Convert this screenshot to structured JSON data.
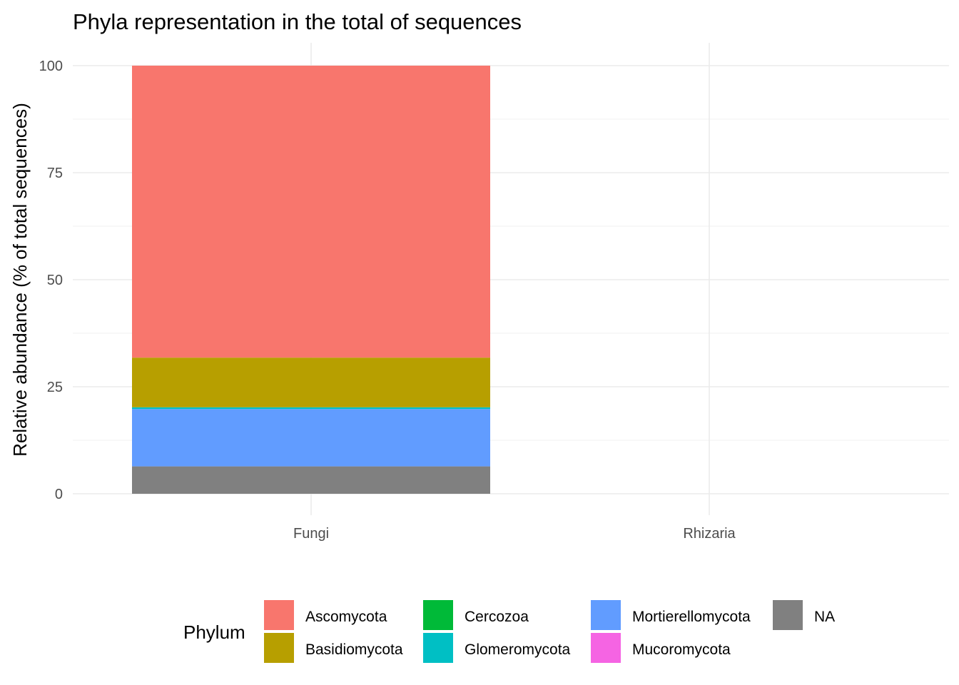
{
  "chart_data": {
    "type": "bar",
    "stacked": true,
    "title": "Phyla representation in the total of sequences",
    "xlabel": "",
    "ylabel": "Relative abundance (% of total sequences)",
    "ylim": [
      0,
      100
    ],
    "yticks": [
      "0",
      "25",
      "50",
      "75",
      "100"
    ],
    "grid": true,
    "categories": [
      "Fungi",
      "Rhizaria"
    ],
    "legend": {
      "title": "Phylum",
      "position": "bottom"
    },
    "series": [
      {
        "name": "Ascomycota",
        "color": "#F8766D",
        "values": [
          68.2,
          0
        ]
      },
      {
        "name": "Basidiomycota",
        "color": "#B79F00",
        "values": [
          11.6,
          0
        ]
      },
      {
        "name": "Cercozoa",
        "color": "#00BA38",
        "values": [
          0,
          0
        ]
      },
      {
        "name": "Glomeromycota",
        "color": "#00BFC4",
        "values": [
          0.4,
          0
        ]
      },
      {
        "name": "Mortierellomycota",
        "color": "#619CFF",
        "values": [
          13.4,
          0
        ]
      },
      {
        "name": "Mucoromycota",
        "color": "#F564E3",
        "values": [
          0,
          0
        ]
      },
      {
        "name": "NA",
        "color": "#808080",
        "values": [
          6.4,
          0
        ]
      }
    ]
  }
}
